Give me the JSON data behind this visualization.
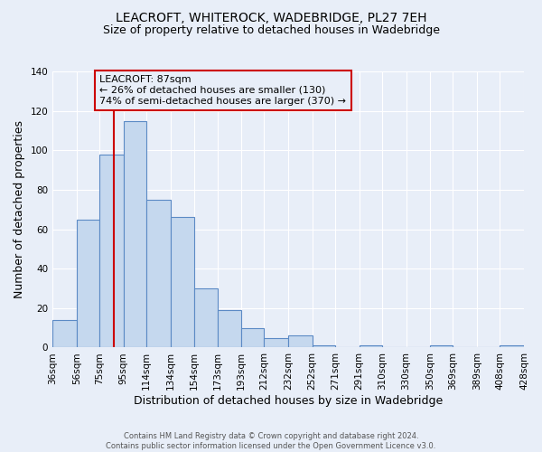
{
  "title": "LEACROFT, WHITEROCK, WADEBRIDGE, PL27 7EH",
  "subtitle": "Size of property relative to detached houses in Wadebridge",
  "xlabel": "Distribution of detached houses by size in Wadebridge",
  "ylabel": "Number of detached properties",
  "footer_line1": "Contains HM Land Registry data © Crown copyright and database right 2024.",
  "footer_line2": "Contains public sector information licensed under the Open Government Licence v3.0.",
  "bin_edges": [
    36,
    56,
    75,
    95,
    114,
    134,
    154,
    173,
    193,
    212,
    232,
    252,
    271,
    291,
    310,
    330,
    350,
    369,
    389,
    408,
    428
  ],
  "bin_labels": [
    "36sqm",
    "56sqm",
    "75sqm",
    "95sqm",
    "114sqm",
    "134sqm",
    "154sqm",
    "173sqm",
    "193sqm",
    "212sqm",
    "232sqm",
    "252sqm",
    "271sqm",
    "291sqm",
    "310sqm",
    "330sqm",
    "350sqm",
    "369sqm",
    "389sqm",
    "408sqm",
    "428sqm"
  ],
  "counts": [
    14,
    65,
    98,
    115,
    75,
    66,
    30,
    19,
    10,
    5,
    6,
    1,
    0,
    1,
    0,
    0,
    1,
    0,
    0,
    1
  ],
  "bar_color": "#c5d8ee",
  "bar_edge_color": "#5b8ac5",
  "bar_linewidth": 0.8,
  "vline_x": 87,
  "vline_color": "#cc0000",
  "annotation_title": "LEACROFT: 87sqm",
  "annotation_line1": "← 26% of detached houses are smaller (130)",
  "annotation_line2": "74% of semi-detached houses are larger (370) →",
  "annotation_box_color": "#cc0000",
  "ylim": [
    0,
    140
  ],
  "yticks": [
    0,
    20,
    40,
    60,
    80,
    100,
    120,
    140
  ],
  "background_color": "#e8eef8",
  "grid_color": "#ffffff",
  "title_fontsize": 10,
  "subtitle_fontsize": 9,
  "axis_label_fontsize": 9,
  "tick_fontsize": 7.5,
  "footer_fontsize": 6.0
}
